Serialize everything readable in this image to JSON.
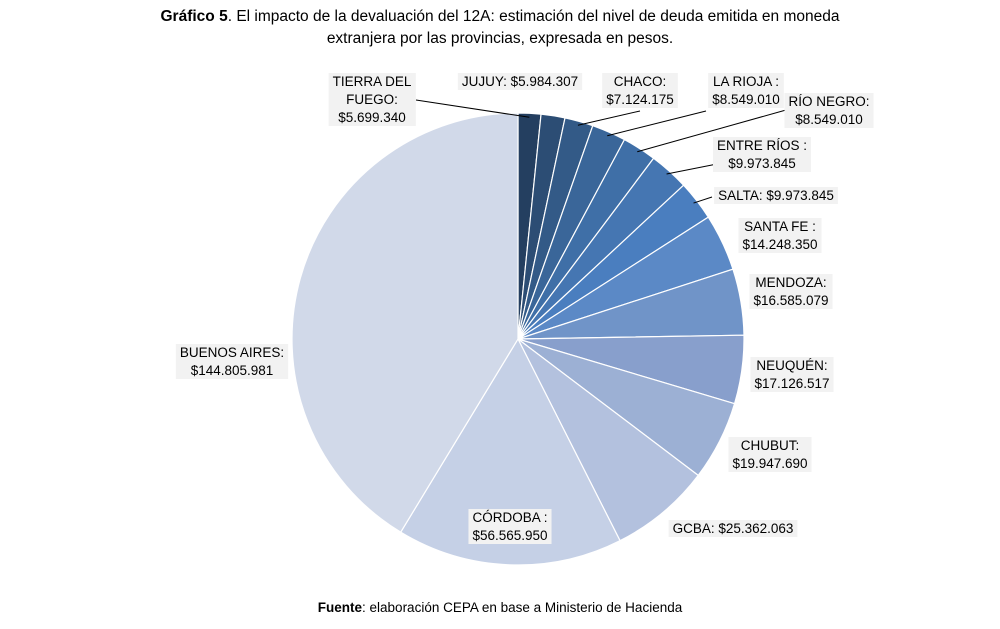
{
  "title": {
    "prefix": "Gráfico 5",
    "line1": ". El impacto de la devaluación del 12A: estimación del nivel de deuda emitida en moneda",
    "line2": "extranjera por las provincias, expresada en pesos."
  },
  "source": {
    "prefix": "Fuente",
    "text": ": elaboración CEPA en base a Ministerio de Hacienda"
  },
  "chart_data": {
    "type": "pie",
    "start_angle_deg": 0,
    "direction": "clockwise",
    "slices": [
      {
        "name": "TIERRA DEL FUEGO",
        "value": 5699340,
        "label_lines": [
          "TIERRA DEL",
          "FUEGO:",
          "$5.699.340"
        ],
        "color": "#243f60"
      },
      {
        "name": "JUJUY",
        "value": 5984307,
        "label_lines": [
          "JUJUY: $5.984.307"
        ],
        "color": "#2c4d74"
      },
      {
        "name": "CHACO",
        "value": 7124175,
        "label_lines": [
          "CHACO:",
          "$7.124.175"
        ],
        "color": "#335a87"
      },
      {
        "name": "LA RIOJA",
        "value": 8549010,
        "label_lines": [
          "LA RIOJA  :",
          "$8.549.010"
        ],
        "color": "#3a6699"
      },
      {
        "name": "RÍO NEGRO",
        "value": 8549010,
        "label_lines": [
          "RÍO NEGRO:",
          "$8.549.010"
        ],
        "color": "#3f6fa7"
      },
      {
        "name": "ENTRE RÍOS",
        "value": 9973845,
        "label_lines": [
          "ENTRE RÍOS :",
          "$9.973.845"
        ],
        "color": "#4576b2"
      },
      {
        "name": "SALTA",
        "value": 9973845,
        "label_lines": [
          "SALTA: $9.973.845"
        ],
        "color": "#4a7ebf"
      },
      {
        "name": "SANTA FE",
        "value": 14248350,
        "label_lines": [
          "SANTA FE :",
          "$14.248.350"
        ],
        "color": "#5b89c6"
      },
      {
        "name": "MENDOZA",
        "value": 16585079,
        "label_lines": [
          "MENDOZA:",
          "$16.585.079"
        ],
        "color": "#7094c8"
      },
      {
        "name": "NEUQUÉN",
        "value": 17126517,
        "label_lines": [
          "NEUQUÉN:",
          "$17.126.517"
        ],
        "color": "#889fcc"
      },
      {
        "name": "CHUBUT",
        "value": 19947690,
        "label_lines": [
          "CHUBUT:",
          "$19.947.690"
        ],
        "color": "#9cb0d4"
      },
      {
        "name": "GCBA",
        "value": 25362063,
        "label_lines": [
          "GCBA: $25.362.063"
        ],
        "color": "#b3c1de"
      },
      {
        "name": "CÓRDOBA",
        "value": 56565950,
        "label_lines": [
          "CÓRDOBA :",
          "$56.565.950"
        ],
        "color": "#c5d0e6"
      },
      {
        "name": "BUENOS AIRES",
        "value": 144805981,
        "label_lines": [
          "BUENOS AIRES:",
          "$144.805.981"
        ],
        "color": "#d1d9e9"
      }
    ]
  }
}
